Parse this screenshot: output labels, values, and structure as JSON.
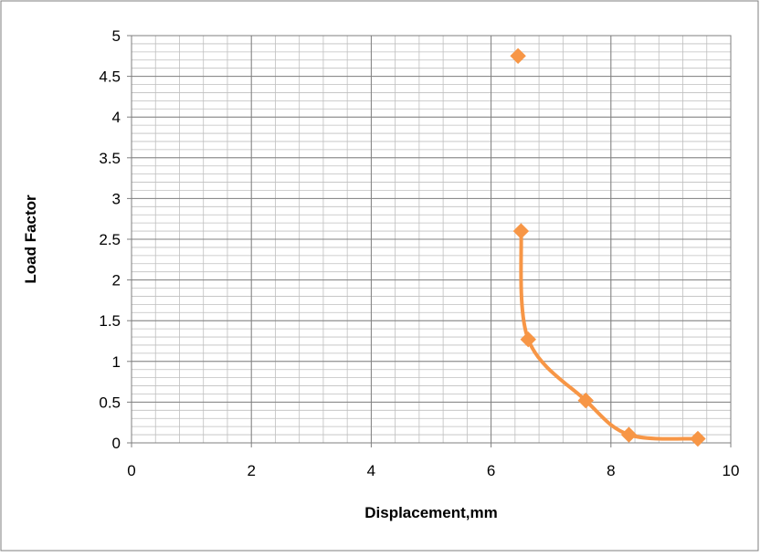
{
  "chart_data": {
    "type": "scatter",
    "title": "",
    "xlabel": "Displacement,mm",
    "ylabel": "Load Factor",
    "xlim": [
      0,
      10
    ],
    "ylim": [
      0,
      5
    ],
    "x_ticks": [
      "0",
      "2",
      "4",
      "6",
      "8",
      "10"
    ],
    "y_ticks": [
      "0",
      "0.5",
      "1",
      "1.5",
      "2",
      "2.5",
      "3",
      "3.5",
      "4",
      "4.5",
      "5"
    ],
    "grid": true,
    "legend": "none",
    "series": [
      {
        "color": "#f79646",
        "marker": "diamond",
        "line": "smooth",
        "points": [
          {
            "x": 6.45,
            "y": 4.75,
            "connected": false
          },
          {
            "x": 6.5,
            "y": 2.6,
            "connected": true
          },
          {
            "x": 6.62,
            "y": 1.27,
            "connected": true
          },
          {
            "x": 7.58,
            "y": 0.52,
            "connected": true
          },
          {
            "x": 8.3,
            "y": 0.1,
            "connected": true
          },
          {
            "x": 9.45,
            "y": 0.05,
            "connected": true
          }
        ]
      }
    ],
    "colors": {
      "frame": "#7f7f7f",
      "grid_major": "#808080",
      "grid_minor": "#bfbfbf"
    }
  }
}
